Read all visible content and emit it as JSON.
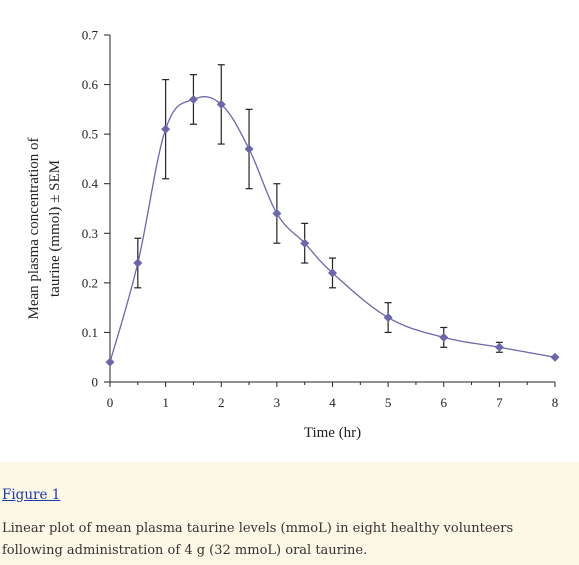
{
  "figure": {
    "link_label": "Figure 1",
    "caption": "Linear plot of mean plasma taurine levels (mmoL) in eight healthy volunteers following administration of 4 g (32 mmoL) oral taurine."
  },
  "chart_data": {
    "type": "line",
    "title": "",
    "xlabel": "Time (hr)",
    "ylabel_lines": [
      "Mean plasma concentration of",
      "taurine (mmol) ± SEM"
    ],
    "xlim": [
      0,
      8
    ],
    "ylim": [
      0,
      0.7
    ],
    "x_ticks": [
      "0",
      "1",
      "2",
      "3",
      "4",
      "5",
      "6",
      "7",
      "8"
    ],
    "y_ticks": [
      "0",
      "0.1",
      "0.2",
      "0.3",
      "0.4",
      "0.5",
      "0.6",
      "0.7"
    ],
    "grid": false,
    "legend": "none",
    "series": [
      {
        "color": "#6b67a8",
        "points": [
          {
            "x": 0,
            "y": 0.04,
            "err": 0
          },
          {
            "x": 0.5,
            "y": 0.24,
            "err": 0.05
          },
          {
            "x": 1,
            "y": 0.51,
            "err": 0.1
          },
          {
            "x": 1.5,
            "y": 0.57,
            "err": 0.05
          },
          {
            "x": 2,
            "y": 0.56,
            "err": 0.08
          },
          {
            "x": 2.5,
            "y": 0.47,
            "err": 0.08
          },
          {
            "x": 3,
            "y": 0.34,
            "err": 0.06
          },
          {
            "x": 3.5,
            "y": 0.28,
            "err": 0.04
          },
          {
            "x": 4,
            "y": 0.22,
            "err": 0.03
          },
          {
            "x": 5,
            "y": 0.13,
            "err": 0.03
          },
          {
            "x": 6,
            "y": 0.09,
            "err": 0.02
          },
          {
            "x": 7,
            "y": 0.07,
            "err": 0.01
          },
          {
            "x": 8,
            "y": 0.05,
            "err": 0
          }
        ]
      }
    ]
  }
}
